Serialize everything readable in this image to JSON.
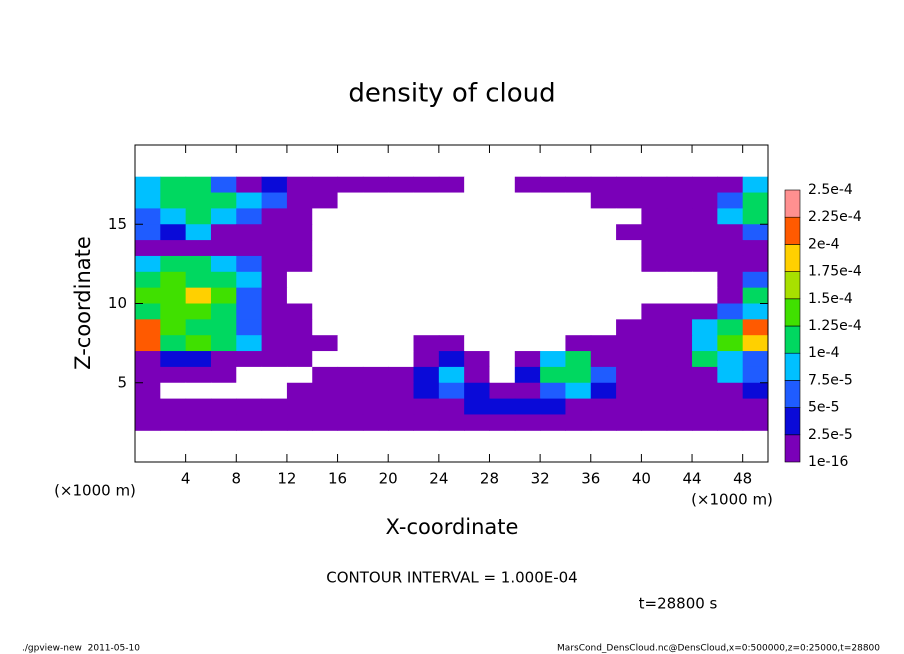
{
  "chart_data": {
    "type": "contour",
    "title": "density of cloud",
    "x_label": "X-coordinate",
    "y_label": "Z-coordinate",
    "x_unit": "(×1000 m)",
    "y_unit": "(×1000 m)",
    "xlim": [
      0,
      50
    ],
    "ylim": [
      0,
      20
    ],
    "xticks": [
      4,
      8,
      12,
      16,
      20,
      24,
      28,
      32,
      36,
      40,
      44,
      48
    ],
    "yticks": [
      5,
      10,
      15
    ],
    "levels": [
      {
        "value": 1e-16,
        "label": "1e-16"
      },
      {
        "value": 2.5e-05,
        "label": "2.5e-5"
      },
      {
        "value": 5e-05,
        "label": "5e-5"
      },
      {
        "value": 7.5e-05,
        "label": "7.5e-5"
      },
      {
        "value": 0.0001,
        "label": "1e-4"
      },
      {
        "value": 0.000125,
        "label": "1.25e-4"
      },
      {
        "value": 0.00015,
        "label": "1.5e-4"
      },
      {
        "value": 0.000175,
        "label": "1.75e-4"
      },
      {
        "value": 0.0002,
        "label": "2e-4"
      },
      {
        "value": 0.000225,
        "label": "2.25e-4"
      },
      {
        "value": 0.00025,
        "label": "2.5e-4"
      }
    ],
    "colors": [
      "#7a00b8",
      "#0a0ad8",
      "#1f5cff",
      "#00c0ff",
      "#00d860",
      "#40e000",
      "#a8e000",
      "#ffd000",
      "#ff5a00",
      "#ff9090"
    ],
    "x": [
      1,
      3,
      5,
      7,
      9,
      11,
      13,
      15,
      17,
      19,
      21,
      23,
      25,
      27,
      29,
      31,
      33,
      35,
      37,
      39,
      41,
      43,
      45,
      47,
      49
    ],
    "y": [
      17.5,
      16.5,
      15.5,
      14.5,
      13.5,
      12.5,
      11.5,
      10.5,
      9.5,
      8.5,
      7.5,
      6.5,
      5.5,
      4.5,
      3.5,
      2.5
    ],
    "z": [
      [
        8.5e-05,
        0.00011,
        0.00011,
        6e-05,
        1e-06,
        3e-05,
        1e-06,
        1e-06,
        1e-06,
        1e-06,
        1e-06,
        1e-06,
        1e-06,
        0,
        0,
        1e-06,
        1e-06,
        1e-06,
        1e-06,
        1e-06,
        1e-06,
        1e-06,
        1e-06,
        1e-06,
        8.5e-05
      ],
      [
        8.5e-05,
        0.00011,
        0.00011,
        0.00011,
        8.5e-05,
        6e-05,
        1e-06,
        1e-06,
        0,
        0,
        0,
        0,
        0,
        0,
        0,
        0,
        0,
        0,
        1e-06,
        1e-06,
        1e-06,
        1e-06,
        1e-06,
        6e-05,
        0.00011
      ],
      [
        6e-05,
        8.5e-05,
        0.00011,
        8.5e-05,
        6e-05,
        1e-06,
        1e-06,
        0,
        0,
        0,
        0,
        0,
        0,
        0,
        0,
        0,
        0,
        0,
        0,
        0,
        1e-06,
        1e-06,
        1e-06,
        8.5e-05,
        0.00011
      ],
      [
        6e-05,
        3e-05,
        8.5e-05,
        1e-06,
        1e-06,
        1e-06,
        1e-06,
        0,
        0,
        0,
        0,
        0,
        0,
        0,
        0,
        0,
        0,
        0,
        0,
        1e-06,
        1e-06,
        1e-06,
        1e-06,
        1e-06,
        6e-05
      ],
      [
        1e-06,
        1e-06,
        1e-06,
        1e-06,
        1e-06,
        1e-06,
        1e-06,
        0,
        0,
        0,
        0,
        0,
        0,
        0,
        0,
        0,
        0,
        0,
        0,
        0,
        1e-06,
        1e-06,
        1e-06,
        1e-06,
        1e-06
      ],
      [
        8.5e-05,
        0.00011,
        0.00011,
        8.5e-05,
        6e-05,
        1e-06,
        1e-06,
        0,
        0,
        0,
        0,
        0,
        0,
        0,
        0,
        0,
        0,
        0,
        0,
        0,
        1e-06,
        1e-06,
        1e-06,
        1e-06,
        1e-06
      ],
      [
        0.00011,
        0.00014,
        0.00011,
        0.00011,
        8.5e-05,
        1e-06,
        0,
        0,
        0,
        0,
        0,
        0,
        0,
        0,
        0,
        0,
        0,
        0,
        0,
        0,
        0,
        0,
        0,
        1e-06,
        6e-05
      ],
      [
        0.00014,
        0.00014,
        0.00018,
        0.00014,
        6e-05,
        1e-06,
        0,
        0,
        0,
        0,
        0,
        0,
        0,
        0,
        0,
        0,
        0,
        0,
        0,
        0,
        0,
        0,
        0,
        1e-06,
        0.00011
      ],
      [
        0.00011,
        0.00014,
        0.00014,
        0.00011,
        6e-05,
        1e-06,
        1e-06,
        0,
        0,
        0,
        0,
        0,
        0,
        0,
        0,
        0,
        0,
        0,
        0,
        0,
        1e-06,
        1e-06,
        1e-06,
        6e-05,
        8.5e-05
      ],
      [
        0.00021,
        0.00014,
        0.00011,
        0.00011,
        6e-05,
        1e-06,
        1e-06,
        0,
        0,
        0,
        0,
        0,
        0,
        0,
        0,
        0,
        0,
        0,
        0,
        1e-06,
        1e-06,
        1e-06,
        8.5e-05,
        0.00011,
        0.00021
      ],
      [
        0.00021,
        0.00011,
        0.00014,
        0.00011,
        8.5e-05,
        1e-06,
        1e-06,
        1e-06,
        0,
        0,
        0,
        1e-06,
        1e-06,
        0,
        0,
        0,
        0,
        1e-06,
        1e-06,
        1e-06,
        1e-06,
        1e-06,
        8.5e-05,
        0.00014,
        0.00018
      ],
      [
        1e-06,
        3e-05,
        3e-05,
        1e-06,
        1e-06,
        1e-06,
        1e-06,
        0,
        0,
        0,
        0,
        1e-06,
        3e-05,
        1e-06,
        0,
        1e-06,
        8.5e-05,
        0.00011,
        1e-06,
        1e-06,
        1e-06,
        1e-06,
        0.00011,
        8.5e-05,
        6e-05
      ],
      [
        1e-06,
        1e-06,
        1e-06,
        1e-06,
        0,
        0,
        0,
        1e-06,
        1e-06,
        1e-06,
        1e-06,
        3e-05,
        8.5e-05,
        1e-06,
        0,
        3e-05,
        0.00011,
        0.00011,
        6e-05,
        1e-06,
        1e-06,
        1e-06,
        1e-06,
        8.5e-05,
        6e-05
      ],
      [
        1e-06,
        0,
        0,
        0,
        0,
        0,
        1e-06,
        1e-06,
        1e-06,
        1e-06,
        1e-06,
        3e-05,
        6e-05,
        3e-05,
        1e-06,
        1e-06,
        6e-05,
        8.5e-05,
        3e-05,
        1e-06,
        1e-06,
        1e-06,
        1e-06,
        1e-06,
        3e-05
      ],
      [
        1e-06,
        1e-06,
        1e-06,
        1e-06,
        1e-06,
        1e-06,
        1e-06,
        1e-06,
        1e-06,
        1e-06,
        1e-06,
        1e-06,
        1e-06,
        3e-05,
        3e-05,
        3e-05,
        3e-05,
        1e-06,
        1e-06,
        1e-06,
        1e-06,
        1e-06,
        1e-06,
        1e-06,
        1e-06
      ],
      [
        1e-06,
        1e-06,
        1e-06,
        1e-06,
        1e-06,
        1e-06,
        1e-06,
        1e-06,
        1e-06,
        1e-06,
        1e-06,
        1e-06,
        1e-06,
        1e-06,
        1e-06,
        1e-06,
        1e-06,
        1e-06,
        1e-06,
        1e-06,
        1e-06,
        1e-06,
        1e-06,
        1e-06,
        1e-06
      ]
    ],
    "contour_note": "CONTOUR INTERVAL = 1.000E-04",
    "time_label": "t=28800 s",
    "footer_left": "./gpview-new  2011-05-10",
    "footer_right": "MarsCond_DensCloud.nc@DensCloud,x=0:500000,z=0:25000,t=28800"
  }
}
